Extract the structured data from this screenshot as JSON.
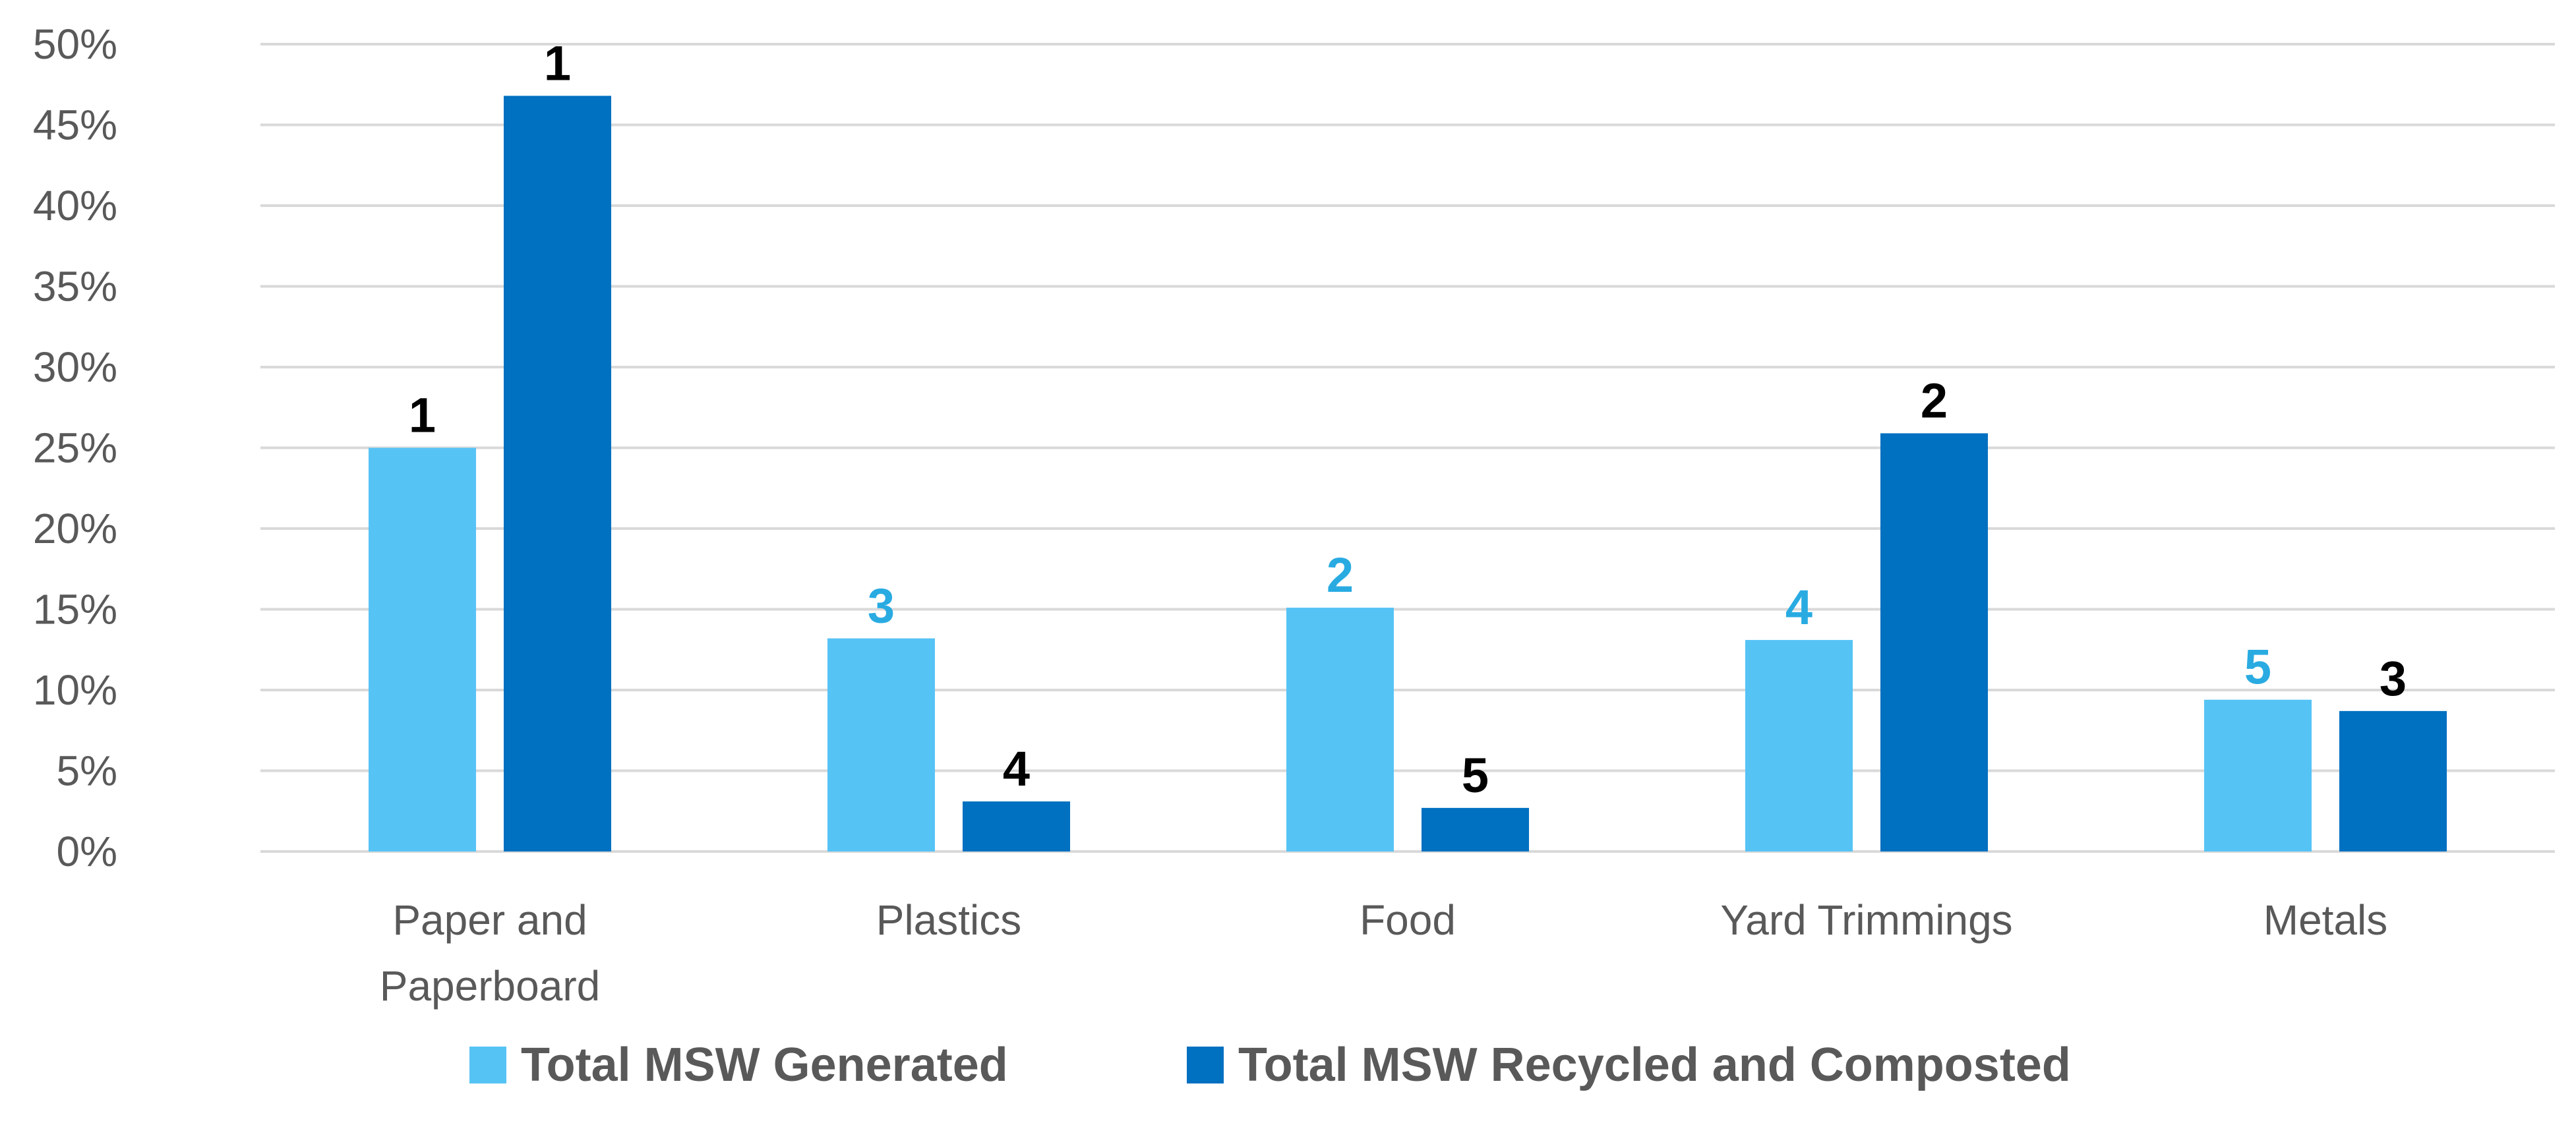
{
  "chart_data": {
    "type": "bar",
    "title": "",
    "xlabel": "",
    "ylabel": "",
    "ylim": [
      0,
      50
    ],
    "y_ticks": [
      "0%",
      "5%",
      "10%",
      "15%",
      "20%",
      "25%",
      "30%",
      "35%",
      "40%",
      "45%",
      "50%"
    ],
    "grid": true,
    "legend_position": "bottom",
    "categories": [
      [
        "Paper and",
        "Paperboard"
      ],
      [
        "Plastics"
      ],
      [
        "Food"
      ],
      [
        "Yard Trimmings"
      ],
      [
        "Metals"
      ]
    ],
    "series": [
      {
        "name": "Total MSW Generated",
        "color": "#56c3f5",
        "label_color": "#29abe2",
        "values": [
          25.0,
          13.2,
          15.1,
          13.1,
          9.4
        ],
        "rank_labels": [
          "1",
          "3",
          "2",
          "4",
          "5"
        ],
        "rank_label_colors": [
          "#000000",
          "#29abe2",
          "#29abe2",
          "#29abe2",
          "#29abe2"
        ]
      },
      {
        "name": "Total MSW Recycled and Composted",
        "color": "#0070c0",
        "label_color": "#000000",
        "values": [
          46.8,
          3.1,
          2.7,
          25.9,
          8.7
        ],
        "rank_labels": [
          "1",
          "4",
          "5",
          "2",
          "3"
        ],
        "rank_label_colors": [
          "#000000",
          "#000000",
          "#000000",
          "#000000",
          "#000000"
        ]
      }
    ]
  }
}
